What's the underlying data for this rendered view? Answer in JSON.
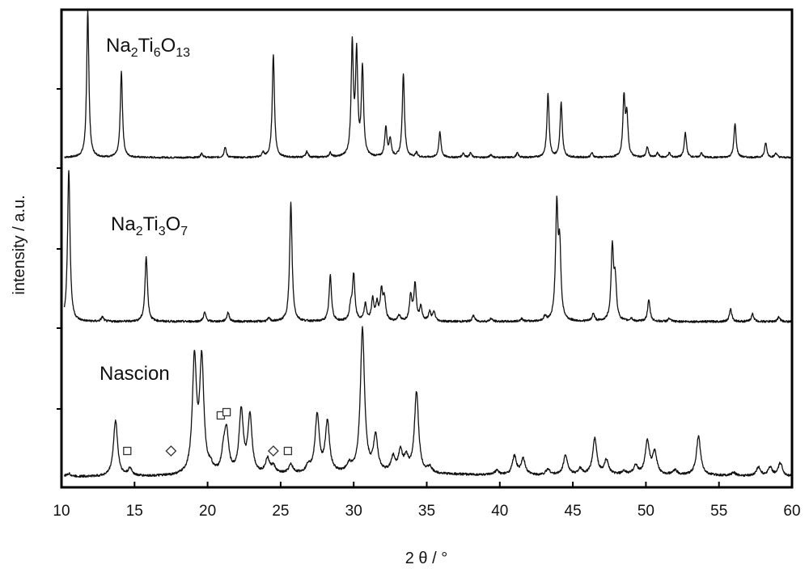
{
  "chart_data": {
    "type": "line",
    "xlabel": "2 θ / °",
    "ylabel": "intensity / a.u.",
    "xlim": [
      10,
      60
    ],
    "xticks": [
      "10",
      "15",
      "20",
      "25",
      "30",
      "35",
      "40",
      "45",
      "50",
      "55",
      "60"
    ],
    "grid": false,
    "legend": "none (series labelled inline above each trace)",
    "series": [
      {
        "name": "Na2Ti6O13",
        "label_parts": [
          {
            "t": "Na",
            "s": ""
          },
          {
            "t": "2",
            "s": "sub"
          },
          {
            "t": "Ti",
            "s": ""
          },
          {
            "t": "6",
            "s": "sub"
          },
          {
            "t": "O",
            "s": ""
          },
          {
            "t": "13",
            "s": "sub"
          }
        ],
        "peaks": [
          [
            11.8,
            100
          ],
          [
            14.1,
            58
          ],
          [
            19.6,
            3
          ],
          [
            21.2,
            7
          ],
          [
            23.8,
            3
          ],
          [
            24.5,
            70
          ],
          [
            26.8,
            4
          ],
          [
            28.4,
            3
          ],
          [
            29.9,
            75
          ],
          [
            30.2,
            68
          ],
          [
            30.6,
            60
          ],
          [
            32.2,
            20
          ],
          [
            32.5,
            12
          ],
          [
            33.4,
            57
          ],
          [
            34.3,
            3
          ],
          [
            35.9,
            17
          ],
          [
            37.5,
            3
          ],
          [
            38.0,
            3
          ],
          [
            39.4,
            2
          ],
          [
            41.2,
            3
          ],
          [
            43.3,
            43
          ],
          [
            44.2,
            37
          ],
          [
            46.3,
            3
          ],
          [
            48.5,
            40
          ],
          [
            48.7,
            27
          ],
          [
            50.1,
            7
          ],
          [
            50.8,
            3
          ],
          [
            51.6,
            3
          ],
          [
            52.7,
            17
          ],
          [
            53.8,
            3
          ],
          [
            56.1,
            23
          ],
          [
            58.2,
            10
          ],
          [
            58.9,
            3
          ]
        ]
      },
      {
        "name": "Na2Ti3O7",
        "label_parts": [
          {
            "t": "Na",
            "s": ""
          },
          {
            "t": "2",
            "s": "sub"
          },
          {
            "t": "Ti",
            "s": ""
          },
          {
            "t": "3",
            "s": "sub"
          },
          {
            "t": "O",
            "s": ""
          },
          {
            "t": "7",
            "s": "sub"
          }
        ],
        "peaks": [
          [
            10.5,
            100
          ],
          [
            12.8,
            3
          ],
          [
            15.8,
            43
          ],
          [
            19.8,
            6
          ],
          [
            21.4,
            6
          ],
          [
            24.2,
            2
          ],
          [
            25.7,
            78
          ],
          [
            28.4,
            30
          ],
          [
            29.8,
            9
          ],
          [
            30.0,
            30
          ],
          [
            30.8,
            11
          ],
          [
            31.3,
            14
          ],
          [
            31.6,
            11
          ],
          [
            31.9,
            19
          ],
          [
            32.1,
            14
          ],
          [
            33.1,
            4
          ],
          [
            33.9,
            17
          ],
          [
            34.2,
            24
          ],
          [
            34.6,
            9
          ],
          [
            35.2,
            6
          ],
          [
            35.5,
            6
          ],
          [
            38.2,
            4
          ],
          [
            39.4,
            2
          ],
          [
            41.5,
            2
          ],
          [
            43.1,
            3
          ],
          [
            43.9,
            73
          ],
          [
            44.1,
            45
          ],
          [
            46.4,
            5
          ],
          [
            47.7,
            48
          ],
          [
            47.9,
            25
          ],
          [
            49.0,
            2
          ],
          [
            50.2,
            14
          ],
          [
            51.6,
            2
          ],
          [
            55.8,
            8
          ],
          [
            57.3,
            5
          ],
          [
            59.1,
            3
          ]
        ]
      },
      {
        "name": "Nascion",
        "label_parts": [
          {
            "t": "Nascion",
            "s": ""
          }
        ],
        "peaks": [
          [
            10.5,
            2
          ],
          [
            13.7,
            39
          ],
          [
            14.7,
            5
          ],
          [
            19.1,
            79
          ],
          [
            19.6,
            78
          ],
          [
            20.2,
            4
          ],
          [
            21.1,
            13
          ],
          [
            21.3,
            27
          ],
          [
            22.3,
            43
          ],
          [
            22.9,
            40
          ],
          [
            24.1,
            10
          ],
          [
            24.5,
            5
          ],
          [
            25.7,
            6
          ],
          [
            26.9,
            5
          ],
          [
            27.5,
            40
          ],
          [
            28.2,
            35
          ],
          [
            29.7,
            5
          ],
          [
            30.6,
            100
          ],
          [
            31.5,
            25
          ],
          [
            32.7,
            10
          ],
          [
            33.2,
            14
          ],
          [
            33.6,
            9
          ],
          [
            34.3,
            56
          ],
          [
            35.2,
            4
          ],
          [
            39.8,
            3
          ],
          [
            41.0,
            13
          ],
          [
            41.6,
            11
          ],
          [
            43.3,
            4
          ],
          [
            44.5,
            14
          ],
          [
            45.5,
            4
          ],
          [
            46.5,
            25
          ],
          [
            47.3,
            10
          ],
          [
            48.5,
            2
          ],
          [
            49.3,
            6
          ],
          [
            50.1,
            23
          ],
          [
            50.6,
            15
          ],
          [
            52.0,
            3
          ],
          [
            53.6,
            27
          ],
          [
            56.0,
            2
          ],
          [
            57.7,
            6
          ],
          [
            58.5,
            6
          ],
          [
            59.2,
            9
          ]
        ]
      }
    ],
    "markers": [
      {
        "shape": "square",
        "x": 14.5
      },
      {
        "shape": "diamond",
        "x": 17.5
      },
      {
        "shape": "square",
        "x": 20.9
      },
      {
        "shape": "square",
        "x": 21.3
      },
      {
        "shape": "diamond",
        "x": 24.5
      },
      {
        "shape": "square",
        "x": 25.5
      }
    ]
  }
}
